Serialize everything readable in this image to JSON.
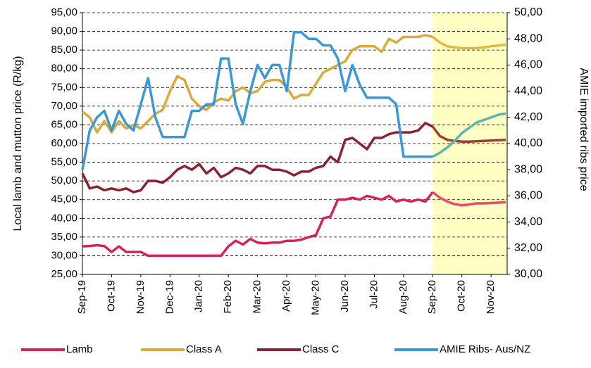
{
  "chart_data": {
    "type": "line",
    "y_label": "Local lamb  and mutton  price (R/kg)",
    "y2_label": "AMIE  imported  ribs price",
    "categories": [
      "Sep-19",
      null,
      null,
      null,
      "Oct-19",
      null,
      null,
      null,
      "Nov-19",
      null,
      null,
      null,
      "Dec-19",
      null,
      null,
      null,
      "Jan-20",
      null,
      null,
      null,
      "Feb-20",
      null,
      null,
      null,
      "Mar-20",
      null,
      null,
      null,
      "Apr-20",
      null,
      null,
      null,
      "May-20",
      null,
      null,
      null,
      "Jun-20",
      null,
      null,
      null,
      "Jul-20",
      null,
      null,
      null,
      "Aug-20",
      null,
      null,
      null,
      "Sep-20",
      null,
      null,
      null,
      "Oct-20",
      null,
      null,
      null,
      "Nov-20",
      null,
      null
    ],
    "forecast_from": "Sep-20",
    "forecast_shade": "#ffffc4",
    "series": [
      {
        "name": "Lamb",
        "color": "#d8205f",
        "forecast_color": "#e84a6a",
        "values": [
          32.5,
          32.6,
          32.8,
          32.6,
          31,
          32.5,
          31,
          31,
          31,
          30,
          30,
          30,
          30,
          30,
          30,
          30,
          30,
          30,
          30,
          30,
          32.5,
          34,
          33,
          34.5,
          33.5,
          33.3,
          33.5,
          33.5,
          34,
          34,
          34.3,
          35,
          35.5,
          40,
          40.5,
          45,
          45,
          45.5,
          45,
          46,
          45.5,
          45,
          46,
          44.5,
          45,
          44.5,
          45,
          44.5,
          47,
          45.5,
          44.5,
          43.8,
          43.5,
          43.7,
          44,
          44,
          44.1,
          44.2,
          44.3
        ]
      },
      {
        "name": "Class A",
        "color": "#d9aa3a",
        "forecast_color": "#e2b845",
        "values": [
          68.5,
          67,
          63,
          66,
          63,
          66,
          64,
          65,
          64,
          66,
          68,
          69,
          74,
          78,
          77,
          72,
          70,
          69,
          71,
          72,
          71.5,
          74,
          75,
          73.5,
          74,
          76.5,
          77,
          77,
          75,
          72,
          73,
          73,
          76,
          79,
          80,
          81,
          82,
          85,
          86,
          86,
          86,
          84.5,
          88,
          87,
          88.5,
          88.5,
          88.5,
          89,
          88.5,
          87,
          86,
          85.7,
          85.5,
          85.5,
          85.5,
          85.7,
          86,
          86.2,
          86.5
        ]
      },
      {
        "name": "Class C",
        "color": "#8c2231",
        "forecast_color": "#a23a3a",
        "values": [
          52,
          48,
          48.5,
          47.5,
          48,
          47.5,
          48,
          47,
          47.5,
          50,
          50,
          49.5,
          51,
          53,
          54,
          53,
          54.5,
          52,
          53.5,
          51,
          52,
          53.5,
          53,
          52,
          54,
          54,
          53,
          53,
          52.5,
          51.5,
          52.5,
          52.5,
          53.5,
          54,
          56.5,
          55,
          61,
          61.5,
          60,
          58.5,
          61.5,
          61.5,
          62.5,
          63,
          63,
          63,
          63.5,
          65.5,
          64.5,
          62,
          61,
          60.7,
          60.5,
          60.5,
          60.6,
          60.7,
          60.8,
          60.9,
          61
        ]
      },
      {
        "name": "AMIE Ribs- Aus/NZ",
        "color": "#3a98d8",
        "forecast_color": "#5db5b0",
        "axis": "y2",
        "values": [
          38,
          41,
          42,
          42.5,
          41,
          42.5,
          41.5,
          41,
          43,
          45,
          42,
          40.5,
          40.5,
          40.5,
          40.5,
          42.5,
          42.5,
          43,
          43,
          46.5,
          46.5,
          43,
          41.5,
          44,
          46,
          45,
          46,
          46,
          44,
          48.5,
          48.5,
          48,
          48,
          47.5,
          47.5,
          46.5,
          44,
          46,
          44.5,
          43.5,
          43.5,
          43.5,
          43.5,
          43,
          39,
          39,
          39,
          39,
          39,
          39.3,
          39.7,
          40.2,
          40.8,
          41.2,
          41.6,
          41.8,
          42,
          42.2,
          42.3
        ]
      }
    ],
    "ylim": [
      25,
      95
    ],
    "yticks": [
      {
        "value": 25,
        "label": "25,00"
      },
      {
        "value": 30,
        "label": "30,00"
      },
      {
        "value": 35,
        "label": "35,00"
      },
      {
        "value": 40,
        "label": "40,00"
      },
      {
        "value": 45,
        "label": "45,00"
      },
      {
        "value": 50,
        "label": "50,00"
      },
      {
        "value": 55,
        "label": "55,00"
      },
      {
        "value": 60,
        "label": "60,00"
      },
      {
        "value": 65,
        "label": "65,00"
      },
      {
        "value": 70,
        "label": "70,00"
      },
      {
        "value": 75,
        "label": "75,00"
      },
      {
        "value": 80,
        "label": "80,00"
      },
      {
        "value": 85,
        "label": "85,00"
      },
      {
        "value": 90,
        "label": "90,00"
      },
      {
        "value": 95,
        "label": "95,00"
      }
    ],
    "y2lim": [
      30,
      50
    ],
    "y2ticks": [
      {
        "value": 30,
        "label": "30,00"
      },
      {
        "value": 32,
        "label": "32,00"
      },
      {
        "value": 34,
        "label": "34,00"
      },
      {
        "value": 36,
        "label": "36,00"
      },
      {
        "value": 38,
        "label": "38,00"
      },
      {
        "value": 40,
        "label": "40,00"
      },
      {
        "value": 42,
        "label": "42,00"
      },
      {
        "value": 44,
        "label": "44,00"
      },
      {
        "value": 46,
        "label": "46,00"
      },
      {
        "value": 48,
        "label": "48,00"
      },
      {
        "value": 50,
        "label": "50,00"
      }
    ],
    "grid": true,
    "legend": "bottom"
  }
}
